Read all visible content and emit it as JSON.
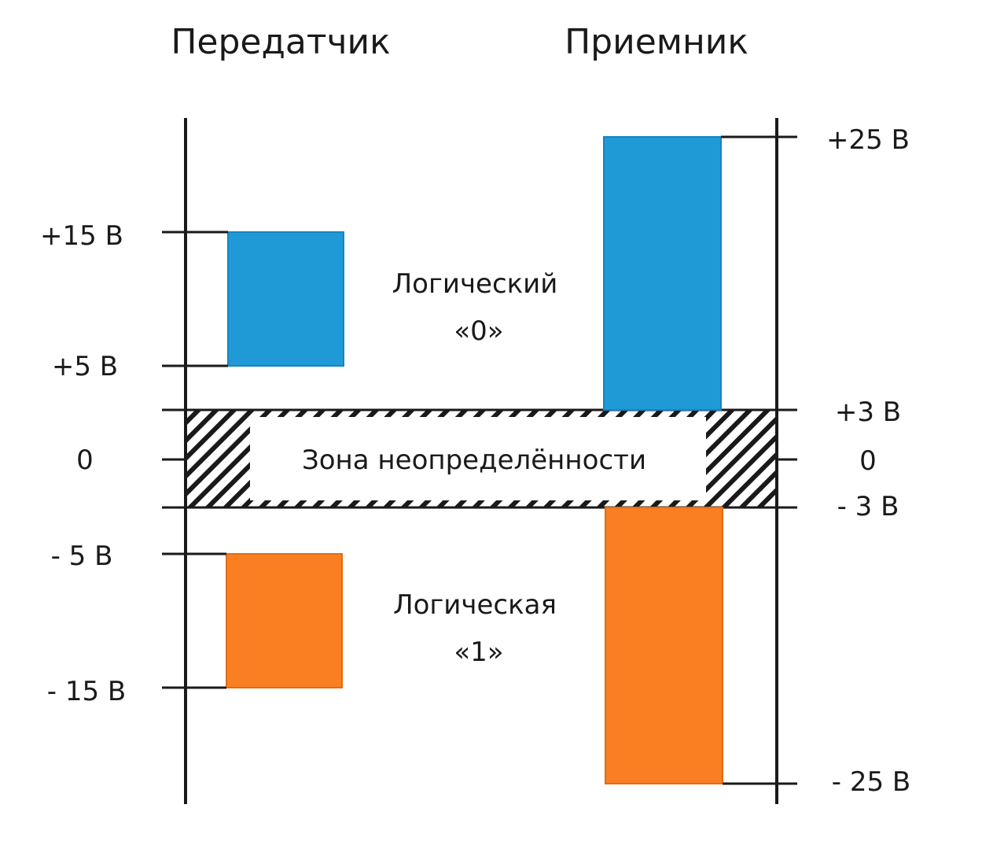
{
  "headers": {
    "transmitter": "Передатчик",
    "receiver": "Приемник"
  },
  "transmitter_levels": [
    {
      "key": "tx_p15",
      "label": "+15 В",
      "value": 15
    },
    {
      "key": "tx_p5",
      "label": "+5 В",
      "value": 5
    },
    {
      "key": "tx_0",
      "label": "0",
      "value": 0
    },
    {
      "key": "tx_m5",
      "label": "- 5 В",
      "value": -5
    },
    {
      "key": "tx_m15",
      "label": "- 15 В",
      "value": -15
    }
  ],
  "receiver_levels": [
    {
      "key": "rx_p25",
      "label": "+25 В",
      "value": 25
    },
    {
      "key": "rx_p3",
      "label": "+3 В",
      "value": 3
    },
    {
      "key": "rx_0",
      "label": "0",
      "value": 0
    },
    {
      "key": "rx_m3",
      "label": "- 3 В",
      "value": -3
    },
    {
      "key": "rx_m25",
      "label": "- 25 В",
      "value": -25
    }
  ],
  "logic_zero": {
    "line1": "Логический",
    "line2": "«0»",
    "transmitter_range": [
      5,
      15
    ],
    "receiver_range": [
      3,
      25
    ],
    "color": "#1f9ad6"
  },
  "logic_one": {
    "line1": "Логическая",
    "line2": "«1»",
    "transmitter_range": [
      -15,
      -5
    ],
    "receiver_range": [
      -25,
      -3
    ],
    "color": "#f97f22"
  },
  "uncertainty_zone": {
    "label": "Зона неопределённости",
    "range": [
      -3,
      3
    ]
  }
}
